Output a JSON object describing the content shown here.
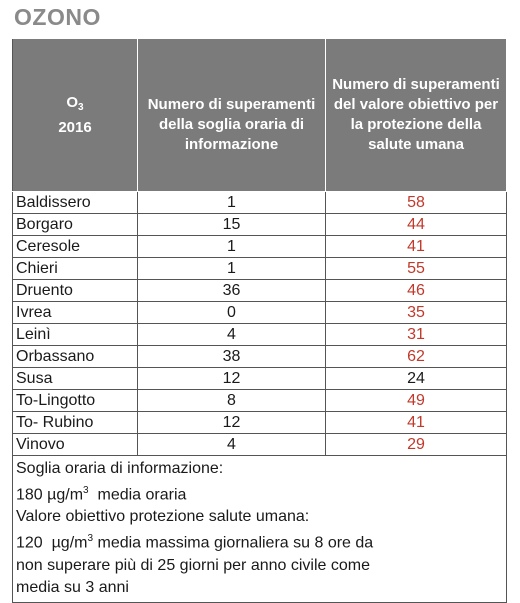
{
  "title": "OZONO",
  "header": {
    "col1_main": "O",
    "col1_sub": "3",
    "col1_year": "2016",
    "col2": "Numero di superamenti della soglia oraria di informazione",
    "col3": "Numero di superamenti del valore obiettivo per la protezione della salute umana"
  },
  "rows": [
    {
      "station": "Baldissero",
      "info": "1",
      "target": "58",
      "target_color": "#c0392b"
    },
    {
      "station": "Borgaro",
      "info": "15",
      "target": "44",
      "target_color": "#c0392b"
    },
    {
      "station": "Ceresole",
      "info": "1",
      "target": "41",
      "target_color": "#c0392b"
    },
    {
      "station": "Chieri",
      "info": "1",
      "target": "55",
      "target_color": "#c0392b"
    },
    {
      "station": "Druento",
      "info": "36",
      "target": "46",
      "target_color": "#c0392b"
    },
    {
      "station": "Ivrea",
      "info": "0",
      "target": "35",
      "target_color": "#c0392b"
    },
    {
      "station": "Leinì",
      "info": "4",
      "target": "31",
      "target_color": "#c0392b"
    },
    {
      "station": "Orbassano",
      "info": "38",
      "target": "62",
      "target_color": "#c0392b"
    },
    {
      "station": "Susa",
      "info": "12",
      "target": "24",
      "target_color": "#1a1a1a"
    },
    {
      "station": "To-Lingotto",
      "info": "8",
      "target": "49",
      "target_color": "#c0392b"
    },
    {
      "station": "To- Rubino",
      "info": "12",
      "target": "41",
      "target_color": "#c0392b"
    },
    {
      "station": "Vinovo",
      "info": "4",
      "target": "29",
      "target_color": "#c0392b"
    }
  ],
  "notes": {
    "line1": "Soglia oraria di informazione:",
    "line2_pre": "180 µg/m",
    "line2_sup": "3",
    "line2_post": "  media oraria",
    "line3": "Valore obiettivo protezione salute umana:",
    "line4_pre": "120  µg/m",
    "line4_sup": "3",
    "line4_post": " media massima giornaliera su 8 ore da",
    "line5": "non superare più di 25 giorni per anno civile come",
    "line6": "media su 3 anni"
  }
}
